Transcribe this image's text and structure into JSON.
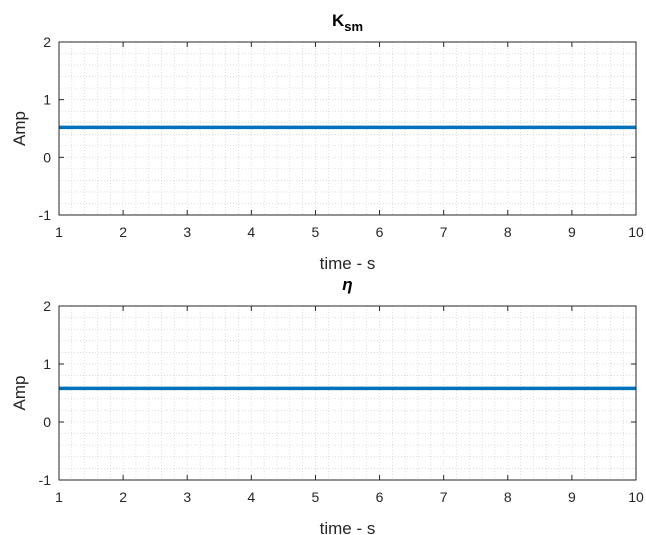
{
  "chart_data": [
    {
      "type": "line",
      "title": "K",
      "title_subscript": "sm",
      "xlabel": "time - s",
      "ylabel": "Amp",
      "xlim": [
        1,
        10
      ],
      "ylim": [
        -1,
        2
      ],
      "xticks": [
        "1",
        "2",
        "3",
        "4",
        "5",
        "6",
        "7",
        "8",
        "9",
        "10"
      ],
      "yticks": [
        "-1",
        "0",
        "1",
        "2"
      ],
      "grid": "major and minor (dotted)",
      "series": [
        {
          "x": [
            1,
            10
          ],
          "y": [
            0.52,
            0.52
          ],
          "color": "#0072BD"
        }
      ]
    },
    {
      "type": "line",
      "title": "η",
      "title_subscript": "",
      "xlabel": "time - s",
      "ylabel": "Amp",
      "xlim": [
        1,
        10
      ],
      "ylim": [
        -1,
        2
      ],
      "xticks": [
        "1",
        "2",
        "3",
        "4",
        "5",
        "6",
        "7",
        "8",
        "9",
        "10"
      ],
      "yticks": [
        "-1",
        "0",
        "1",
        "2"
      ],
      "grid": "major and minor (dotted)",
      "series": [
        {
          "x": [
            1,
            10
          ],
          "y": [
            0.58,
            0.58
          ],
          "color": "#0072BD"
        }
      ]
    }
  ]
}
